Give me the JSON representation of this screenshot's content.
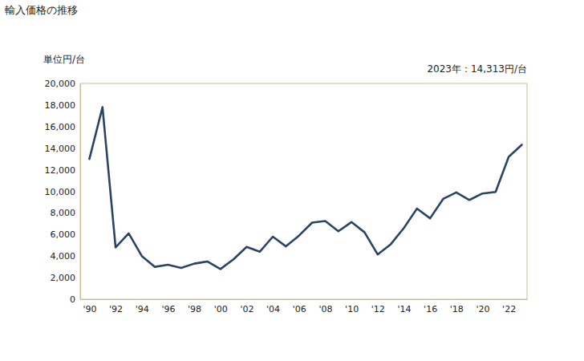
{
  "chart_data": {
    "type": "line",
    "title": "輸入価格の推移",
    "y_label": "単位円/台",
    "annotation": "2023年：14,313円/台",
    "x": [
      1990,
      1991,
      1992,
      1993,
      1994,
      1995,
      1996,
      1997,
      1998,
      1999,
      2000,
      2001,
      2002,
      2003,
      2004,
      2005,
      2006,
      2007,
      2008,
      2009,
      2010,
      2011,
      2012,
      2013,
      2014,
      2015,
      2016,
      2017,
      2018,
      2019,
      2020,
      2021,
      2022,
      2023
    ],
    "values": [
      13000,
      17800,
      4800,
      6100,
      4000,
      3000,
      3200,
      2900,
      3300,
      3500,
      2800,
      3700,
      4850,
      4400,
      5800,
      4900,
      5900,
      7100,
      7250,
      6300,
      7150,
      6200,
      4150,
      5100,
      6600,
      8400,
      7500,
      9300,
      9900,
      9200,
      9800,
      9950,
      13200,
      14313
    ],
    "color": "#2b4466",
    "xlim": [
      1989.3,
      2023.4
    ],
    "xticks": [
      {
        "value": 1990,
        "label": "'90"
      },
      {
        "value": 1992,
        "label": "'92"
      },
      {
        "value": 1994,
        "label": "'94"
      },
      {
        "value": 1996,
        "label": "'96"
      },
      {
        "value": 1998,
        "label": "'98"
      },
      {
        "value": 2000,
        "label": "'00"
      },
      {
        "value": 2002,
        "label": "'02"
      },
      {
        "value": 2004,
        "label": "'04"
      },
      {
        "value": 2006,
        "label": "'06"
      },
      {
        "value": 2008,
        "label": "'08"
      },
      {
        "value": 2010,
        "label": "'10"
      },
      {
        "value": 2012,
        "label": "'12"
      },
      {
        "value": 2014,
        "label": "'14"
      },
      {
        "value": 2016,
        "label": "'16"
      },
      {
        "value": 2018,
        "label": "'18"
      },
      {
        "value": 2020,
        "label": "'20"
      },
      {
        "value": 2022,
        "label": "'22"
      }
    ],
    "ylim": [
      0,
      20000
    ],
    "yticks": [
      0,
      {
        "value": 2000,
        "label": "2,000"
      },
      {
        "value": 4000,
        "label": "4,000"
      },
      {
        "value": 6000,
        "label": "6,000"
      },
      {
        "value": 8000,
        "label": "8,000"
      },
      {
        "value": 10000,
        "label": "10,000"
      },
      {
        "value": 12000,
        "label": "12,000"
      },
      {
        "value": 14000,
        "label": "14,000"
      },
      {
        "value": 16000,
        "label": "16,000"
      },
      {
        "value": 18000,
        "label": "18,000"
      },
      {
        "value": 20000,
        "label": "20,000"
      }
    ],
    "grid": false
  }
}
